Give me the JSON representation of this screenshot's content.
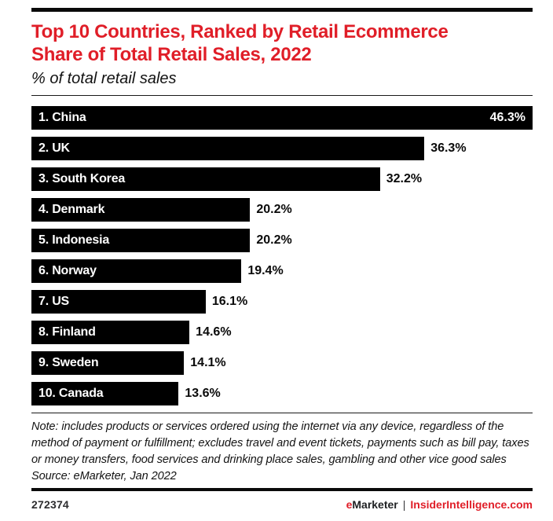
{
  "header": {
    "title": "Top 10 Countries, Ranked by Retail Ecommerce Share of Total Retail Sales, 2022",
    "subtitle": "% of total retail sales"
  },
  "chart_data": {
    "type": "bar",
    "orientation": "horizontal",
    "title": "Top 10 Countries, Ranked by Retail Ecommerce Share of Total Retail Sales, 2022",
    "subtitle": "% of total retail sales",
    "categories": [
      "1. China",
      "2. UK",
      "3. South Korea",
      "4. Denmark",
      "5. Indonesia",
      "6. Norway",
      "7. US",
      "8. Finland",
      "9. Sweden",
      "10. Canada"
    ],
    "values": [
      46.3,
      36.3,
      32.2,
      20.2,
      20.2,
      19.4,
      16.1,
      14.6,
      14.1,
      13.6
    ],
    "value_labels": [
      "46.3%",
      "36.3%",
      "32.2%",
      "20.2%",
      "20.2%",
      "19.4%",
      "16.1%",
      "14.6%",
      "14.1%",
      "13.6%"
    ],
    "value_label_positions": [
      "inside",
      "outside",
      "outside",
      "outside",
      "outside",
      "outside",
      "outside",
      "outside",
      "outside",
      "outside"
    ],
    "xlim": [
      0,
      46.3
    ],
    "bar_color": "#000000",
    "bar_label_color": "#ffffff",
    "grid": false,
    "legend": false
  },
  "notes": {
    "note": "Note: includes products or services ordered using the internet via any device, regardless of the method of payment or fulfillment; excludes travel and event tickets, payments such as bill pay, taxes or money transfers, food services and drinking place sales, gambling and other vice good sales",
    "source": "Source: eMarketer, Jan 2022"
  },
  "footer": {
    "chart_id": "272374",
    "brand_e": "e",
    "brand_rest": "Marketer",
    "separator": "|",
    "site": "InsiderIntelligence.com"
  },
  "colors": {
    "accent_red": "#e01e28",
    "bar_black": "#000000"
  }
}
